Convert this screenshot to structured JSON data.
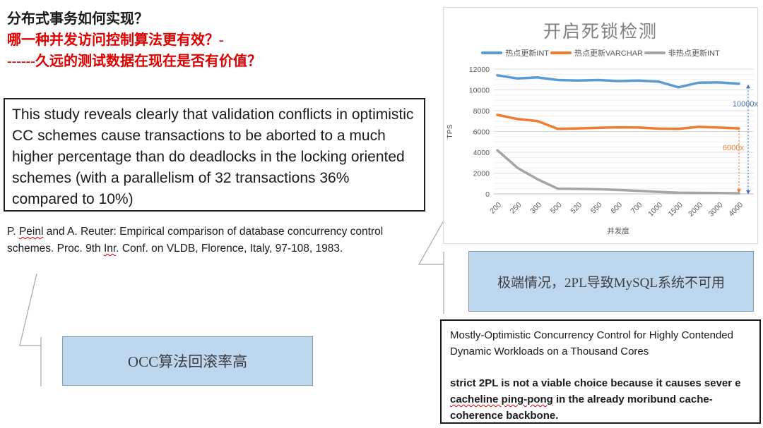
{
  "slide": {
    "heading": {
      "line1": "分布式事务如何实现？",
      "line2": "哪一种并发访问控制算法更有效？-",
      "line3": "------久远的测试数据在现在是否有价值？"
    },
    "study_quote": "This study reveals clearly that validation conflicts in optimistic CC schemes cause transactions to be aborted to a much higher percentage than do deadlocks in the locking oriented schemes (with a parallelism of 32 transactions 36% compared to 10%)",
    "citation": {
      "part1": "P. ",
      "misspelled1": "Peinl",
      "part2": " and A. Reuter: Empirical comparison of database concurrency control schemes. Proc. 9th ",
      "misspelled2": "Inr",
      "part3": ". Conf. on VLDB, Florence, Italy, 97-108, 1983."
    },
    "occ_callout": "OCC算法回滚率高",
    "extreme_callout": "极端情况，2PL导致MySQL系统不可用",
    "paper": {
      "title": "Mostly-Optimistic Concurrency Control for Highly Contended Dynamic Workloads on a Thousand Cores",
      "statement_part1": "strict 2PL is not a viable choice because it causes sever e ",
      "statement_highlight": "cacheline ping-pong",
      "statement_part2": " in the already moribund cache-coherence backbone."
    }
  },
  "colors": {
    "heading_red": "#e00000",
    "callout_fill": "#bdd7ee",
    "callout_border": "#8496a9",
    "chart_title_gray": "#7f7f7f"
  },
  "chart_data": {
    "type": "line",
    "title": "开启死锁检测",
    "xlabel": "并发度",
    "ylabel": "TPS",
    "ylim": [
      0,
      12000
    ],
    "ytick_step": 2000,
    "minor_step": 500,
    "grid": true,
    "legend_position": "top",
    "categories": [
      "200",
      "250",
      "300",
      "500",
      "520",
      "550",
      "600",
      "700",
      "1000",
      "1500",
      "2000",
      "3000",
      "4000"
    ],
    "series": [
      {
        "name": "热点更新INT",
        "color": "#5b9bd5",
        "values": [
          11400,
          11100,
          11200,
          10950,
          10900,
          10950,
          10850,
          10900,
          10800,
          10250,
          10700,
          10720,
          10600
        ]
      },
      {
        "name": "热点更新VARCHAR",
        "color": "#ed7d31",
        "values": [
          7600,
          7200,
          7000,
          6250,
          6300,
          6350,
          6400,
          6380,
          6280,
          6250,
          6450,
          6380,
          6300
        ]
      },
      {
        "name": "非热点更新INT",
        "color": "#a5a5a5",
        "values": [
          4200,
          2500,
          1400,
          500,
          480,
          450,
          380,
          300,
          200,
          120,
          100,
          80,
          60
        ]
      }
    ],
    "annotations": [
      {
        "text": "10000x",
        "color": "#4472c4",
        "style": "dashed-double-arrow",
        "series": 0,
        "to_value": 0
      },
      {
        "text": "6000x",
        "color": "#ed7d31",
        "style": "dashed-drop",
        "series": 1,
        "to_series": 2
      }
    ]
  }
}
